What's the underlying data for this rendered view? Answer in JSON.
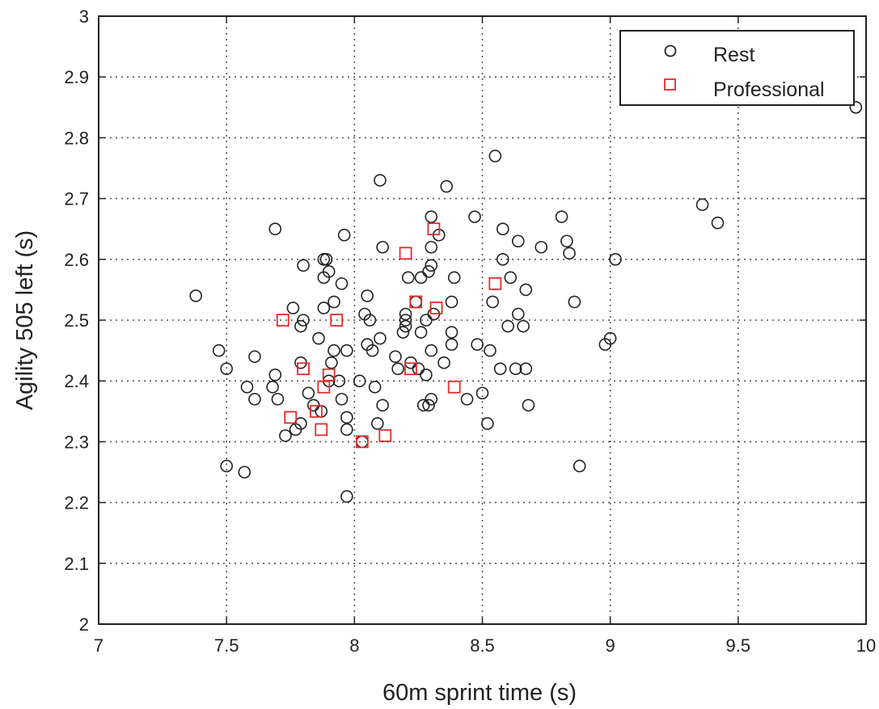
{
  "chart_data": {
    "type": "scatter",
    "xlabel": "60m sprint time (s)",
    "ylabel": "Agility 505 left (s)",
    "xlim": [
      7,
      10
    ],
    "ylim": [
      2,
      3
    ],
    "xticks": [
      7,
      7.5,
      8,
      8.5,
      9,
      9.5,
      10
    ],
    "yticks": [
      2,
      2.1,
      2.2,
      2.3,
      2.4,
      2.5,
      2.6,
      2.7,
      2.8,
      2.9,
      3
    ],
    "xtick_labels": [
      "7",
      "7.5",
      "8",
      "8.5",
      "9",
      "9.5",
      "10"
    ],
    "ytick_labels": [
      "2",
      "2.1",
      "2.2",
      "2.3",
      "2.4",
      "2.5",
      "2.6",
      "2.7",
      "2.8",
      "2.9",
      "3"
    ],
    "grid": true,
    "legend_position": "top-right",
    "series": [
      {
        "name": "Rest",
        "marker": "circle",
        "color": "#222222",
        "points": [
          [
            7.38,
            2.54
          ],
          [
            7.47,
            2.45
          ],
          [
            7.5,
            2.42
          ],
          [
            7.5,
            2.26
          ],
          [
            7.57,
            2.25
          ],
          [
            7.58,
            2.39
          ],
          [
            7.61,
            2.44
          ],
          [
            7.61,
            2.37
          ],
          [
            7.68,
            2.39
          ],
          [
            7.69,
            2.41
          ],
          [
            7.69,
            2.65
          ],
          [
            7.7,
            2.37
          ],
          [
            7.73,
            2.31
          ],
          [
            7.76,
            2.52
          ],
          [
            7.77,
            2.32
          ],
          [
            7.79,
            2.33
          ],
          [
            7.79,
            2.43
          ],
          [
            7.79,
            2.49
          ],
          [
            7.8,
            2.5
          ],
          [
            7.8,
            2.59
          ],
          [
            7.82,
            2.38
          ],
          [
            7.84,
            2.36
          ],
          [
            7.86,
            2.47
          ],
          [
            7.87,
            2.35
          ],
          [
            7.88,
            2.52
          ],
          [
            7.88,
            2.57
          ],
          [
            7.88,
            2.6
          ],
          [
            7.89,
            2.6
          ],
          [
            7.9,
            2.4
          ],
          [
            7.9,
            2.58
          ],
          [
            7.91,
            2.43
          ],
          [
            7.92,
            2.45
          ],
          [
            7.92,
            2.53
          ],
          [
            7.94,
            2.4
          ],
          [
            7.95,
            2.56
          ],
          [
            7.95,
            2.37
          ],
          [
            7.96,
            2.64
          ],
          [
            7.97,
            2.45
          ],
          [
            7.97,
            2.34
          ],
          [
            7.97,
            2.32
          ],
          [
            7.97,
            2.21
          ],
          [
            8.02,
            2.4
          ],
          [
            8.03,
            2.3
          ],
          [
            8.04,
            2.51
          ],
          [
            8.05,
            2.54
          ],
          [
            8.05,
            2.46
          ],
          [
            8.06,
            2.5
          ],
          [
            8.07,
            2.45
          ],
          [
            8.08,
            2.39
          ],
          [
            8.09,
            2.33
          ],
          [
            8.1,
            2.73
          ],
          [
            8.1,
            2.47
          ],
          [
            8.11,
            2.62
          ],
          [
            8.11,
            2.36
          ],
          [
            8.16,
            2.44
          ],
          [
            8.17,
            2.42
          ],
          [
            8.19,
            2.48
          ],
          [
            8.2,
            2.5
          ],
          [
            8.2,
            2.49
          ],
          [
            8.2,
            2.51
          ],
          [
            8.21,
            2.57
          ],
          [
            8.22,
            2.43
          ],
          [
            8.24,
            2.53
          ],
          [
            8.25,
            2.42
          ],
          [
            8.26,
            2.57
          ],
          [
            8.26,
            2.48
          ],
          [
            8.27,
            2.36
          ],
          [
            8.28,
            2.41
          ],
          [
            8.28,
            2.5
          ],
          [
            8.29,
            2.36
          ],
          [
            8.29,
            2.58
          ],
          [
            8.3,
            2.59
          ],
          [
            8.3,
            2.67
          ],
          [
            8.3,
            2.62
          ],
          [
            8.3,
            2.45
          ],
          [
            8.3,
            2.37
          ],
          [
            8.31,
            2.51
          ],
          [
            8.33,
            2.64
          ],
          [
            8.35,
            2.43
          ],
          [
            8.36,
            2.72
          ],
          [
            8.38,
            2.53
          ],
          [
            8.38,
            2.48
          ],
          [
            8.38,
            2.46
          ],
          [
            8.39,
            2.57
          ],
          [
            8.44,
            2.37
          ],
          [
            8.47,
            2.67
          ],
          [
            8.48,
            2.46
          ],
          [
            8.5,
            2.38
          ],
          [
            8.52,
            2.33
          ],
          [
            8.53,
            2.45
          ],
          [
            8.54,
            2.53
          ],
          [
            8.55,
            2.77
          ],
          [
            8.57,
            2.42
          ],
          [
            8.58,
            2.65
          ],
          [
            8.58,
            2.6
          ],
          [
            8.6,
            2.49
          ],
          [
            8.61,
            2.57
          ],
          [
            8.63,
            2.42
          ],
          [
            8.64,
            2.63
          ],
          [
            8.64,
            2.51
          ],
          [
            8.66,
            2.49
          ],
          [
            8.67,
            2.55
          ],
          [
            8.67,
            2.42
          ],
          [
            8.68,
            2.36
          ],
          [
            8.73,
            2.62
          ],
          [
            8.81,
            2.67
          ],
          [
            8.83,
            2.63
          ],
          [
            8.84,
            2.61
          ],
          [
            8.86,
            2.53
          ],
          [
            8.88,
            2.26
          ],
          [
            8.98,
            2.46
          ],
          [
            9.0,
            2.47
          ],
          [
            9.02,
            2.6
          ],
          [
            9.36,
            2.69
          ],
          [
            9.42,
            2.66
          ],
          [
            9.96,
            2.85
          ]
        ]
      },
      {
        "name": "Professional",
        "marker": "square",
        "color": "#e52b2b",
        "points": [
          [
            7.72,
            2.5
          ],
          [
            7.75,
            2.34
          ],
          [
            7.8,
            2.42
          ],
          [
            7.85,
            2.35
          ],
          [
            7.87,
            2.32
          ],
          [
            7.88,
            2.39
          ],
          [
            7.9,
            2.41
          ],
          [
            7.93,
            2.5
          ],
          [
            8.03,
            2.3
          ],
          [
            8.12,
            2.31
          ],
          [
            8.2,
            2.61
          ],
          [
            8.22,
            2.42
          ],
          [
            8.24,
            2.53
          ],
          [
            8.31,
            2.65
          ],
          [
            8.32,
            2.52
          ],
          [
            8.39,
            2.39
          ],
          [
            8.55,
            2.56
          ]
        ]
      }
    ]
  }
}
